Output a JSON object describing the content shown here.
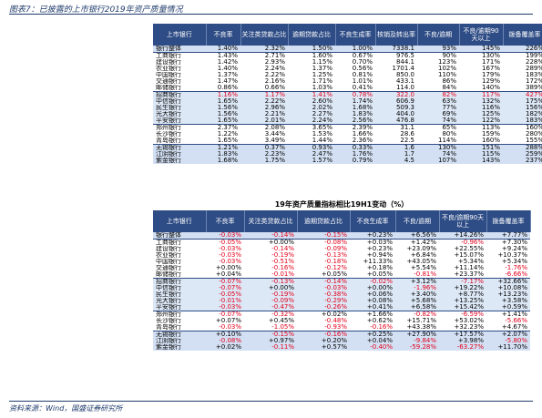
{
  "title": "图表7：已披露的上市银行2019年资产质量情况",
  "table1": {
    "headers": [
      "上市银行",
      "不良率",
      "关注类贷款占比",
      "逾期贷款占比",
      "不良生成率",
      "核销及转出率",
      "不良/逾期",
      "不良/逾期90天以上",
      "拨备覆盖率"
    ],
    "rows": [
      {
        "name": "银行整体",
        "vals": [
          "1.40%",
          "2.32%",
          "1.50%",
          "1.00%",
          "7338.1",
          "93%",
          "145%",
          "226%"
        ],
        "group": "total"
      },
      {
        "name": "工商银行",
        "vals": [
          "1.43%",
          "2.71%",
          "1.60%",
          "0.67%",
          "976.5",
          "90%",
          "130%",
          "199%"
        ],
        "group": "a"
      },
      {
        "name": "建设银行",
        "vals": [
          "1.42%",
          "2.93%",
          "1.15%",
          "0.70%",
          "844.1",
          "123%",
          "171%",
          "228%"
        ],
        "group": "a"
      },
      {
        "name": "农业银行",
        "vals": [
          "1.40%",
          "2.24%",
          "1.37%",
          "0.56%",
          "1701.4",
          "102%",
          "167%",
          "289%"
        ],
        "group": "a"
      },
      {
        "name": "中国银行",
        "vals": [
          "1.37%",
          "2.22%",
          "1.25%",
          "0.81%",
          "850.0",
          "110%",
          "179%",
          "183%"
        ],
        "group": "a"
      },
      {
        "name": "交通银行",
        "vals": [
          "1.47%",
          "2.16%",
          "1.71%",
          "1.01%",
          "433.1",
          "86%",
          "129%",
          "172%"
        ],
        "group": "a"
      },
      {
        "name": "邮储银行",
        "vals": [
          "0.86%",
          "0.66%",
          "1.03%",
          "0.41%",
          "114.0",
          "84%",
          "140%",
          "389%"
        ],
        "group": "a"
      },
      {
        "name": "招商银行",
        "vals": [
          "1.16%",
          "1.17%",
          "1.41%",
          "0.78%",
          "322.0",
          "82%",
          "117%",
          "427%"
        ],
        "group": "b",
        "red": true
      },
      {
        "name": "中信银行",
        "vals": [
          "1.65%",
          "2.22%",
          "2.60%",
          "1.74%",
          "606.9",
          "63%",
          "132%",
          "175%"
        ],
        "group": "b"
      },
      {
        "name": "民生银行",
        "vals": [
          "1.56%",
          "2.96%",
          "2.02%",
          "1.68%",
          "509.3",
          "77%",
          "116%",
          "156%"
        ],
        "group": "b"
      },
      {
        "name": "光大银行",
        "vals": [
          "1.56%",
          "2.21%",
          "2.27%",
          "1.83%",
          "404.0",
          "69%",
          "125%",
          "182%"
        ],
        "group": "b"
      },
      {
        "name": "平安银行",
        "vals": [
          "1.65%",
          "2.01%",
          "2.24%",
          "2.56%",
          "476.8",
          "74%",
          "122%",
          "183%"
        ],
        "group": "b"
      },
      {
        "name": "郑州银行",
        "vals": [
          "2.37%",
          "2.08%",
          "3.65%",
          "2.39%",
          "31.1",
          "65%",
          "113%",
          "160%"
        ],
        "group": "c"
      },
      {
        "name": "长沙银行",
        "vals": [
          "1.22%",
          "3.44%",
          "1.53%",
          "1.66%",
          "28.6",
          "80%",
          "159%",
          "280%"
        ],
        "group": "c"
      },
      {
        "name": "青岛银行",
        "vals": [
          "1.65%",
          "3.49%",
          "1.44%",
          "2.36%",
          "22.5",
          "114%",
          "160%",
          "155%"
        ],
        "group": "c"
      },
      {
        "name": "无锡银行",
        "vals": [
          "1.21%",
          "0.37%",
          "0.93%",
          "0.33%",
          "1.6",
          "130%",
          "151%",
          "288%"
        ],
        "group": "d"
      },
      {
        "name": "江阴银行",
        "vals": [
          "1.83%",
          "2.23%",
          "2.47%",
          "1.76%",
          "1.7",
          "74%",
          "115%",
          "259%"
        ],
        "group": "d"
      },
      {
        "name": "紫金银行",
        "vals": [
          "1.68%",
          "1.75%",
          "1.57%",
          "0.79%",
          "4.5",
          "107%",
          "143%",
          "237%"
        ],
        "group": "d"
      }
    ]
  },
  "table2": {
    "title": "19年资产质量指标相比19H1变动（%）",
    "headers": [
      "上市银行",
      "不良率",
      "关注类贷款占比",
      "逾期贷款占比",
      "不良生成率",
      "不良/逾期",
      "不良/逾期90天以上",
      "拨备覆盖率"
    ],
    "rows": [
      {
        "name": "银行整体",
        "vals": [
          "-0.03%",
          "-0.14%",
          "-0.15%",
          "+0.23%",
          "+6.56%",
          "+14.26%",
          "+7.77%"
        ],
        "red": [
          true,
          true,
          true,
          false,
          false,
          false,
          false
        ],
        "group": "total"
      },
      {
        "name": "工商银行",
        "vals": [
          "-0.05%",
          "+0.00%",
          "-0.08%",
          "+0.03%",
          "+1.42%",
          "-0.96%",
          "+7.30%"
        ],
        "red": [
          true,
          false,
          true,
          false,
          false,
          true,
          false
        ],
        "group": "a"
      },
      {
        "name": "建设银行",
        "vals": [
          "-0.03%",
          "-0.14%",
          "-0.09%",
          "+0.23%",
          "+23.09%",
          "+22.55%",
          "+9.24%"
        ],
        "red": [
          true,
          true,
          true,
          false,
          false,
          false,
          false
        ],
        "group": "a"
      },
      {
        "name": "农业银行",
        "vals": [
          "-0.03%",
          "-0.19%",
          "-0.13%",
          "+0.94%",
          "+6.84%",
          "+15.07%",
          "+10.37%"
        ],
        "red": [
          true,
          true,
          true,
          false,
          false,
          false,
          false
        ],
        "group": "a"
      },
      {
        "name": "中国银行",
        "vals": [
          "-0.03%",
          "-0.51%",
          "-0.18%",
          "+11.33%",
          "+43.05%",
          "+5.34%",
          "+5.34%"
        ],
        "red": [
          true,
          true,
          true,
          false,
          false,
          false,
          false
        ],
        "group": "a"
      },
      {
        "name": "交通银行",
        "vals": [
          "+0.00%",
          "-0.16%",
          "-0.12%",
          "+0.18%",
          "+5.54%",
          "+11.14%",
          "-1.76%"
        ],
        "red": [
          false,
          true,
          true,
          false,
          false,
          false,
          true
        ],
        "group": "a"
      },
      {
        "name": "邮储银行",
        "vals": [
          "+0.04%",
          "-0.01%",
          "+0.05%",
          "+0.05%",
          "-0.81%",
          "+23.37%",
          "-6.66%"
        ],
        "red": [
          false,
          true,
          false,
          false,
          true,
          false,
          true
        ],
        "group": "a"
      },
      {
        "name": "招商银行",
        "vals": [
          "-0.07%",
          "-0.13%",
          "-0.14%",
          "-0.02%",
          "+3.12%",
          "-7.17%",
          "+32.66%"
        ],
        "red": [
          true,
          true,
          true,
          true,
          false,
          true,
          false
        ],
        "group": "b"
      },
      {
        "name": "中信银行",
        "vals": [
          "-0.07%",
          "+0.00%",
          "-0.03%",
          "+0.00%",
          "-1.96%",
          "+19.22%",
          "+10.08%"
        ],
        "red": [
          true,
          false,
          true,
          false,
          true,
          false,
          false
        ],
        "group": "b"
      },
      {
        "name": "民生银行",
        "vals": [
          "-0.05%",
          "-0.19%",
          "-0.38%",
          "+0.06%",
          "+3.40%",
          "+8.77%",
          "+13.23%"
        ],
        "red": [
          true,
          true,
          true,
          false,
          false,
          false,
          false
        ],
        "group": "b"
      },
      {
        "name": "光大银行",
        "vals": [
          "-0.01%",
          "-0.09%",
          "-0.29%",
          "+0.08%",
          "+5.68%",
          "+13.25%",
          "+3.58%"
        ],
        "red": [
          true,
          true,
          true,
          false,
          false,
          false,
          false
        ],
        "group": "b"
      },
      {
        "name": "平安银行",
        "vals": [
          "-0.03%",
          "-0.47%",
          "-0.26%",
          "+0.41%",
          "+6.58%",
          "+15.42%",
          "+0.59%"
        ],
        "red": [
          true,
          true,
          true,
          false,
          false,
          false,
          false
        ],
        "group": "b"
      },
      {
        "name": "郑州银行",
        "vals": [
          "-0.07%",
          "-0.32%",
          "+0.02%",
          "+1.66%",
          "-0.82%",
          "-6.59%",
          "+1.41%"
        ],
        "red": [
          true,
          true,
          false,
          false,
          true,
          true,
          false
        ],
        "group": "c"
      },
      {
        "name": "长沙银行",
        "vals": [
          "+0.07%",
          "+0.45%",
          "-0.48%",
          "+0.62%",
          "+15.71%",
          "+53.02%",
          "-5.66%"
        ],
        "red": [
          false,
          false,
          true,
          false,
          false,
          false,
          true
        ],
        "group": "c"
      },
      {
        "name": "青岛银行",
        "vals": [
          "-0.03%",
          "-1.05%",
          "-0.93%",
          "-0.16%",
          "+43.38%",
          "+32.23%",
          "+4.67%"
        ],
        "red": [
          true,
          true,
          true,
          true,
          false,
          false,
          false
        ],
        "group": "c"
      },
      {
        "name": "无锡银行",
        "vals": [
          "+0.10%",
          "-0.15%",
          "-0.16%",
          "+0.25%",
          "+27.90%",
          "+17.57%",
          "+2.07%"
        ],
        "red": [
          false,
          true,
          true,
          false,
          false,
          false,
          false
        ],
        "group": "d"
      },
      {
        "name": "江阴银行",
        "vals": [
          "-0.08%",
          "+0.97%",
          "+0.20%",
          "+0.04%",
          "-9.84%",
          "+3.98%",
          "-5.80%"
        ],
        "red": [
          true,
          false,
          false,
          false,
          true,
          false,
          true
        ],
        "group": "d"
      },
      {
        "name": "紫金银行",
        "vals": [
          "+0.02%",
          "-0.11%",
          "+0.57%",
          "-0.40%",
          "-59.28%",
          "-63.27%",
          "+11.70%"
        ],
        "red": [
          false,
          true,
          false,
          true,
          true,
          true,
          false
        ],
        "group": "d"
      }
    ]
  },
  "source": "资料来源：Wind，国盛证券研究所"
}
